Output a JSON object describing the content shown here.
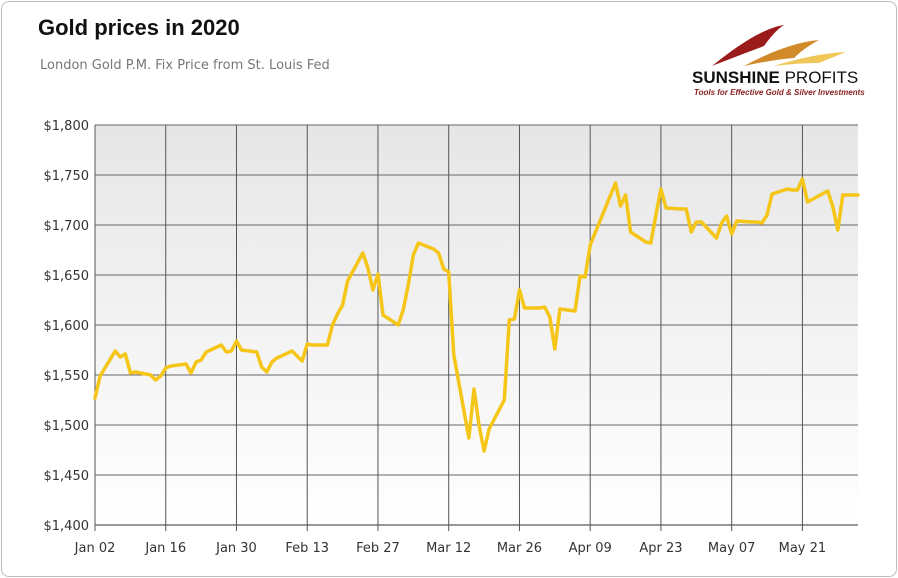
{
  "header": {
    "title": "Gold prices in 2020",
    "subtitle": "London Gold P.M. Fix Price from St. Louis Fed"
  },
  "logo": {
    "name_bold": "SUNSHINE",
    "name_light": " PROFITS",
    "tagline": "Tools for Effective Gold & Silver Investments",
    "colors": [
      "#9b1b1b",
      "#d08a2a",
      "#f0c85a"
    ]
  },
  "colors": {
    "line": "#f5c518",
    "plot_background_top": "#e6e6e6",
    "plot_background_bottom": "#ffffff",
    "grid": "#666666"
  },
  "chart_data": {
    "type": "line",
    "title": "Gold prices in 2020",
    "subtitle": "London Gold P.M. Fix Price from St. Louis Fed",
    "xlabel": "",
    "ylabel": "",
    "ylim": [
      1400,
      1800
    ],
    "xlim": [
      "2020-01-02",
      "2020-06-01"
    ],
    "grid": true,
    "legend": "none",
    "y_tick_labels": [
      "$1,400",
      "$1,450",
      "$1,500",
      "$1,550",
      "$1,600",
      "$1,650",
      "$1,700",
      "$1,750",
      "$1,800"
    ],
    "y_ticks": [
      1400,
      1450,
      1500,
      1550,
      1600,
      1650,
      1700,
      1750,
      1800
    ],
    "x_ticks": [
      {
        "date": "2020-01-02",
        "label": "Jan 02"
      },
      {
        "date": "2020-01-16",
        "label": "Jan 16"
      },
      {
        "date": "2020-01-30",
        "label": "Jan 30"
      },
      {
        "date": "2020-02-13",
        "label": "Feb 13"
      },
      {
        "date": "2020-02-27",
        "label": "Feb 27"
      },
      {
        "date": "2020-03-12",
        "label": "Mar 12"
      },
      {
        "date": "2020-03-26",
        "label": "Mar 26"
      },
      {
        "date": "2020-04-09",
        "label": "Apr 09"
      },
      {
        "date": "2020-04-23",
        "label": "Apr 23"
      },
      {
        "date": "2020-05-07",
        "label": "May 07"
      },
      {
        "date": "2020-05-21",
        "label": "May 21"
      }
    ],
    "series": [
      {
        "x": [
          "2020-01-02",
          "2020-01-03",
          "2020-01-06",
          "2020-01-07",
          "2020-01-08",
          "2020-01-09",
          "2020-01-10",
          "2020-01-13",
          "2020-01-14",
          "2020-01-15",
          "2020-01-16",
          "2020-01-17",
          "2020-01-20",
          "2020-01-21",
          "2020-01-22",
          "2020-01-23",
          "2020-01-24",
          "2020-01-27",
          "2020-01-28",
          "2020-01-29",
          "2020-01-30",
          "2020-01-31",
          "2020-02-03",
          "2020-02-04",
          "2020-02-05",
          "2020-02-06",
          "2020-02-07",
          "2020-02-10",
          "2020-02-11",
          "2020-02-12",
          "2020-02-13",
          "2020-02-14",
          "2020-02-17",
          "2020-02-18",
          "2020-02-19",
          "2020-02-20",
          "2020-02-21",
          "2020-02-24",
          "2020-02-25",
          "2020-02-26",
          "2020-02-27",
          "2020-02-28",
          "2020-03-02",
          "2020-03-03",
          "2020-03-04",
          "2020-03-05",
          "2020-03-06",
          "2020-03-09",
          "2020-03-10",
          "2020-03-11",
          "2020-03-12",
          "2020-03-13",
          "2020-03-16",
          "2020-03-17",
          "2020-03-18",
          "2020-03-19",
          "2020-03-20",
          "2020-03-23",
          "2020-03-24",
          "2020-03-25",
          "2020-03-26",
          "2020-03-27",
          "2020-03-30",
          "2020-03-31",
          "2020-04-01",
          "2020-04-02",
          "2020-04-03",
          "2020-04-06",
          "2020-04-07",
          "2020-04-08",
          "2020-04-09",
          "2020-04-14",
          "2020-04-15",
          "2020-04-16",
          "2020-04-17",
          "2020-04-20",
          "2020-04-21",
          "2020-04-22",
          "2020-04-23",
          "2020-04-24",
          "2020-04-27",
          "2020-04-28",
          "2020-04-29",
          "2020-04-30",
          "2020-05-01",
          "2020-05-04",
          "2020-05-05",
          "2020-05-06",
          "2020-05-07",
          "2020-05-08",
          "2020-05-11",
          "2020-05-12",
          "2020-05-13",
          "2020-05-14",
          "2020-05-15",
          "2020-05-18",
          "2020-05-19",
          "2020-05-20",
          "2020-05-21",
          "2020-05-22",
          "2020-05-26",
          "2020-05-27",
          "2020-05-28",
          "2020-05-29",
          "2020-06-01"
        ],
        "y": [
          1527,
          1549,
          1574,
          1568,
          1571,
          1552,
          1553,
          1550,
          1545,
          1549,
          1557,
          1559,
          1561,
          1552,
          1563,
          1565,
          1573,
          1580,
          1573,
          1574,
          1584,
          1575,
          1573,
          1558,
          1553,
          1563,
          1567,
          1574,
          1569,
          1564,
          1581,
          1580,
          1580,
          1600,
          1611,
          1620,
          1644,
          1672,
          1657,
          1635,
          1651,
          1610,
          1600,
          1615,
          1640,
          1670,
          1682,
          1676,
          1672,
          1656,
          1653,
          1570,
          1487,
          1536,
          1500,
          1474,
          1496,
          1525,
          1605,
          1606,
          1635,
          1617,
          1617,
          1618,
          1608,
          1576,
          1616,
          1614,
          1649,
          1648,
          1680,
          1742,
          1719,
          1730,
          1693,
          1683,
          1682,
          1710,
          1736,
          1717,
          1716,
          1716,
          1693,
          1703,
          1703,
          1687,
          1702,
          1709,
          1691,
          1704,
          1703,
          1703,
          1702,
          1710,
          1731,
          1736,
          1735,
          1735,
          1746,
          1723,
          1734,
          1719,
          1695,
          1730,
          1730
        ]
      }
    ]
  }
}
